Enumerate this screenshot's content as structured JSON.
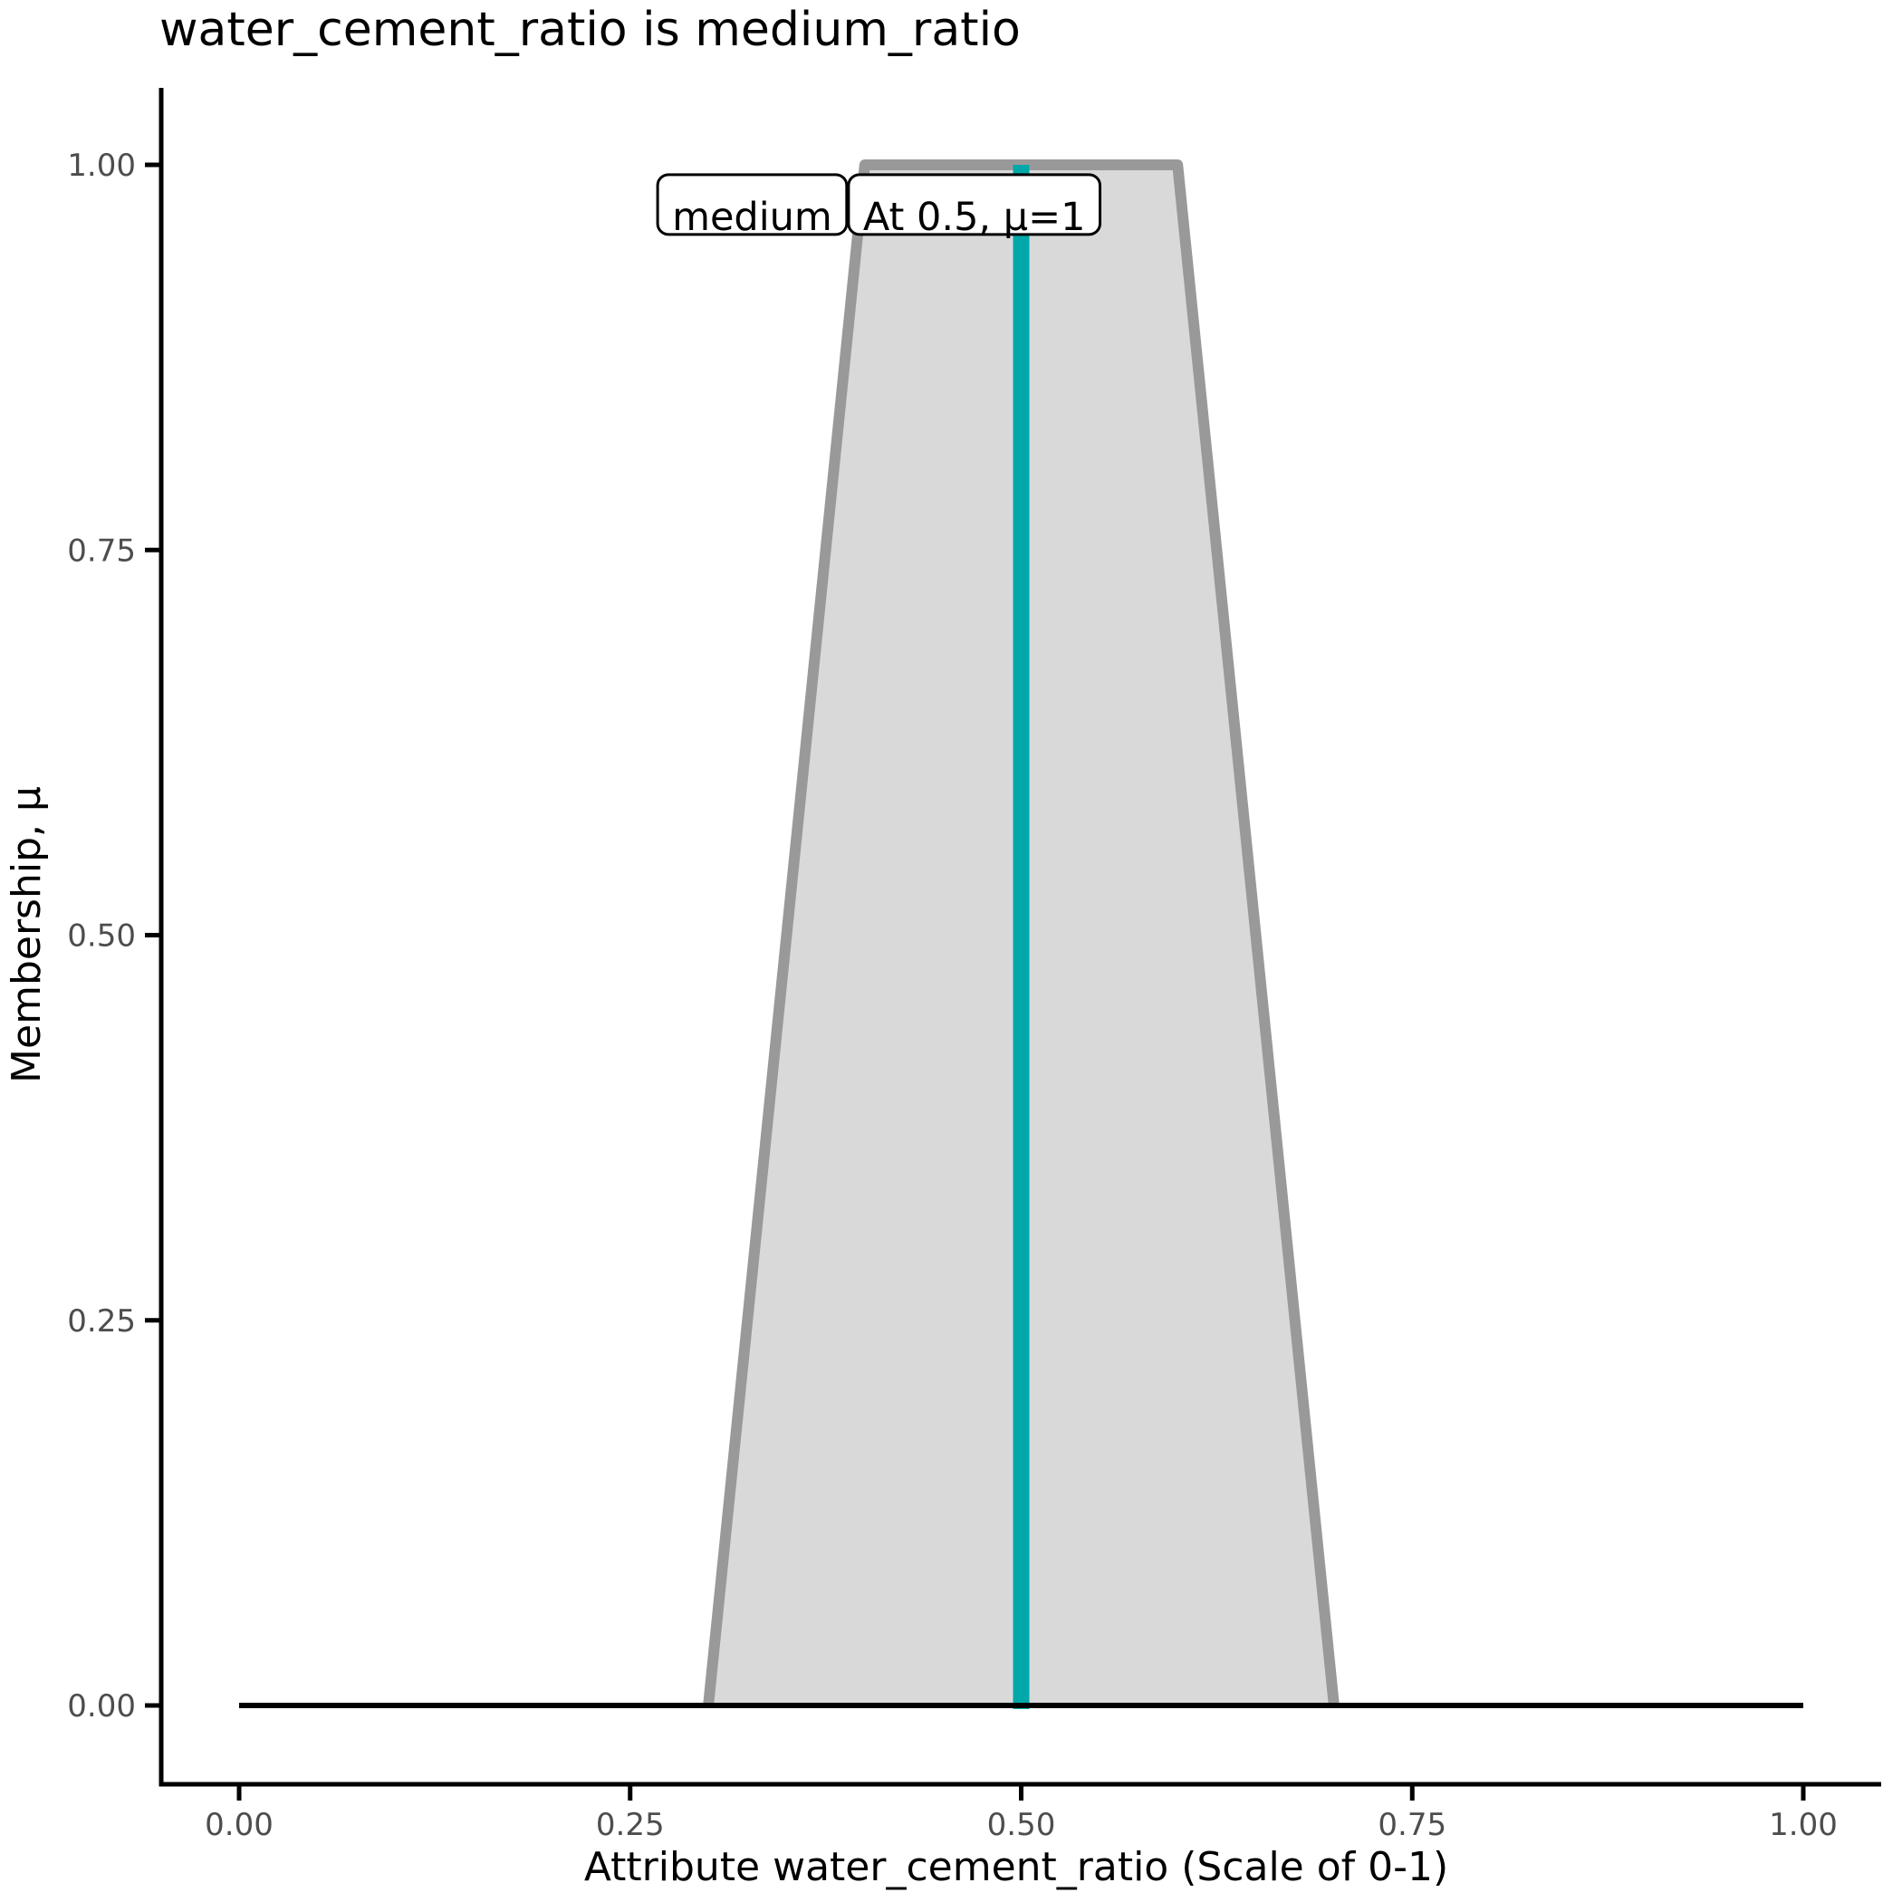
{
  "chart_data": {
    "type": "area",
    "title": "water_cement_ratio is medium_ratio",
    "xlabel": "Attribute water_cement_ratio (Scale of 0-1)",
    "ylabel": "Membership, μ",
    "xlim": [
      0,
      1
    ],
    "ylim": [
      0,
      1
    ],
    "x_ticks": [
      0,
      0.25,
      0.5,
      0.75,
      1.0
    ],
    "x_tick_labels": [
      "0.00",
      "0.25",
      "0.50",
      "0.75",
      "1.00"
    ],
    "y_ticks": [
      0,
      0.25,
      0.5,
      0.75,
      1.0
    ],
    "y_tick_labels": [
      "0.00",
      "0.25",
      "0.50",
      "0.75",
      "1.00"
    ],
    "grid": false,
    "legend": "none",
    "membership_function": {
      "name": "medium_ratio",
      "shape": "trapezoid",
      "x": [
        0.3,
        0.4,
        0.6,
        0.7
      ],
      "mu": [
        0,
        1,
        1,
        0
      ],
      "fill_color": "#D9D9D9",
      "stroke_color": "#999999"
    },
    "baseline": {
      "mu": 0,
      "x_from": 0,
      "x_to": 1,
      "color": "#000000"
    },
    "indicator": {
      "x": 0.5,
      "mu_from": 0,
      "mu_to": 1,
      "color": "#00A8AA"
    },
    "annotations": [
      {
        "text": "medium",
        "x": 0.328,
        "mu": 0.966
      },
      {
        "text": "At 0.5, μ=1",
        "x": 0.47,
        "mu": 0.966
      }
    ],
    "colors": {
      "tick_label": "#4D4D4D",
      "axis_line": "#000000",
      "background": "#FFFFFF"
    }
  }
}
